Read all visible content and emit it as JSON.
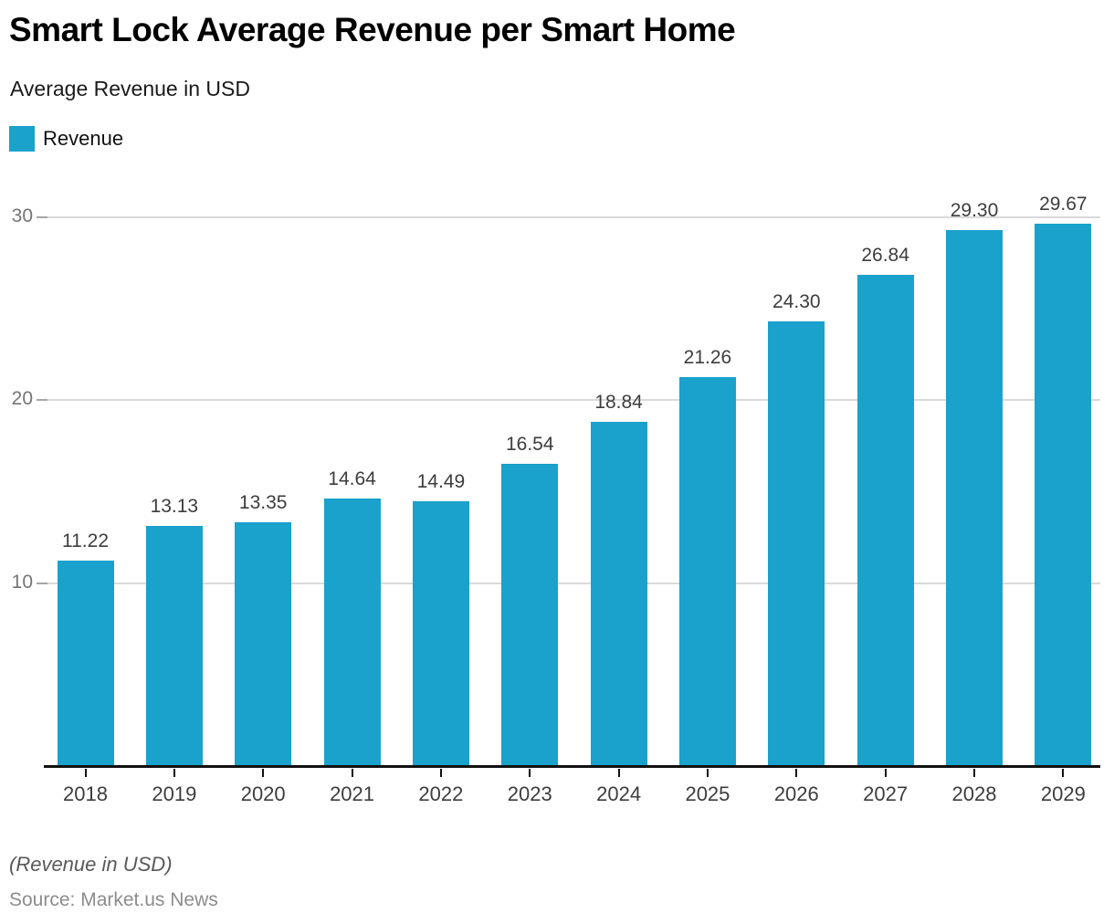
{
  "header": {
    "title": "Smart Lock Average Revenue per Smart Home",
    "subtitle": "Average Revenue in USD"
  },
  "legend": {
    "label": "Revenue",
    "swatch_color": "#1AA1CC"
  },
  "chart_data": {
    "type": "bar",
    "title": "Smart Lock Average Revenue per Smart Home",
    "xlabel": "",
    "ylabel": "Average Revenue in USD",
    "categories": [
      "2018",
      "2019",
      "2020",
      "2021",
      "2022",
      "2023",
      "2024",
      "2025",
      "2026",
      "2027",
      "2028",
      "2029"
    ],
    "series": [
      {
        "name": "Revenue",
        "values": [
          11.22,
          13.13,
          13.35,
          14.64,
          14.49,
          16.54,
          18.84,
          21.26,
          24.3,
          26.84,
          29.3,
          29.67
        ]
      }
    ],
    "value_label_decimals": 2,
    "ylim": [
      0,
      31.5
    ],
    "yticks": [
      10,
      20,
      30
    ],
    "grid": true,
    "legend_position": "top-left",
    "bar_color": "#1AA1CC",
    "gridline_color": "#dadada",
    "axis_color": "#111111"
  },
  "footer": {
    "note": "(Revenue in USD)",
    "source": "Source: Market.us News"
  }
}
